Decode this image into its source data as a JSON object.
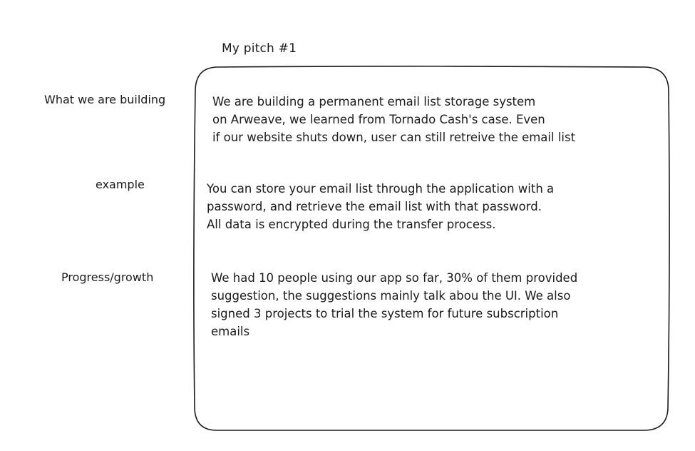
{
  "title": "My pitch #1",
  "sections": [
    {
      "label": "What we are building",
      "lines": [
        "We are building a permanent email list storage system",
        "on Arweave, we learned from Tornado Cash's case. Even",
        "if our website shuts down, user can still retreive the email list"
      ]
    },
    {
      "label": "example",
      "lines": [
        "You can store your email list through the application with a",
        "password, and retrieve the email list with that password.",
        "All data is encrypted during the transfer process."
      ]
    },
    {
      "label": "Progress/growth",
      "lines": [
        "We had 10 people using our app so far, 30% of them provided",
        "suggestion, the suggestions mainly talk abou the UI. We also",
        "signed 3 projects to trial the system for future subscription",
        "emails"
      ]
    }
  ],
  "colors": {
    "ink": "#1b1b1b",
    "background": "#ffffff"
  }
}
